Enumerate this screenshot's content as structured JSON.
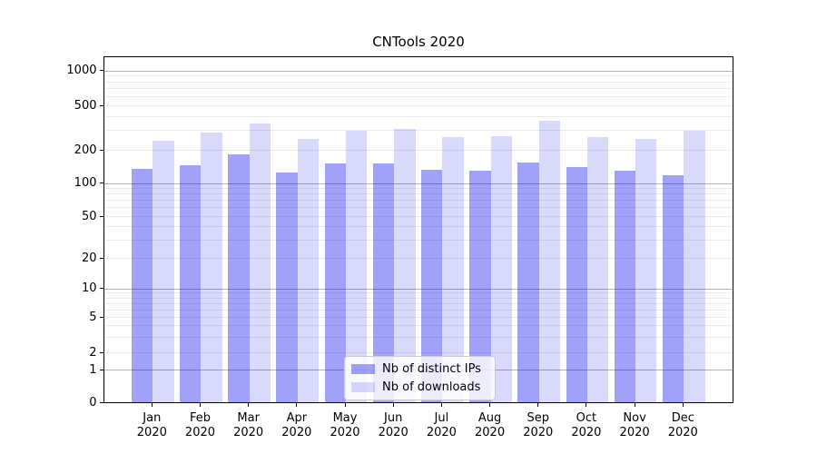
{
  "title": "CNTools 2020",
  "chart_data": {
    "type": "bar",
    "title": "CNTools 2020",
    "xlabel": "",
    "ylabel": "",
    "scale": "quasi-log (linear near 0)",
    "grid": true,
    "legend_position": "lower center",
    "categories": [
      "Jan",
      "Feb",
      "Mar",
      "Apr",
      "May",
      "Jun",
      "Jul",
      "Aug",
      "Sep",
      "Oct",
      "Nov",
      "Dec"
    ],
    "year_label": "2020",
    "yticks": [
      0,
      1,
      2,
      5,
      10,
      20,
      50,
      100,
      200,
      500,
      1000
    ],
    "ylim": [
      0,
      1400
    ],
    "series": [
      {
        "name": "Nb of distinct IPs",
        "color": "#0000EE5E",
        "color_on_white": "#A4A4F0",
        "values": [
          137,
          147,
          184,
          127,
          153,
          152,
          134,
          131,
          155,
          142,
          132,
          120
        ]
      },
      {
        "name": "Nb of downloads",
        "color": "#0000EE26",
        "color_on_white": "#D9D9F8",
        "values": [
          246,
          293,
          351,
          255,
          302,
          315,
          265,
          270,
          373,
          264,
          254,
          300
        ]
      }
    ]
  },
  "colors": {
    "background": "#FFFFFF",
    "spine": "#000000",
    "grid_major": "#B3B3B3",
    "grid_minor": "#EBEBEB",
    "legend_border": "#CCCCCC",
    "text": "#000000"
  }
}
